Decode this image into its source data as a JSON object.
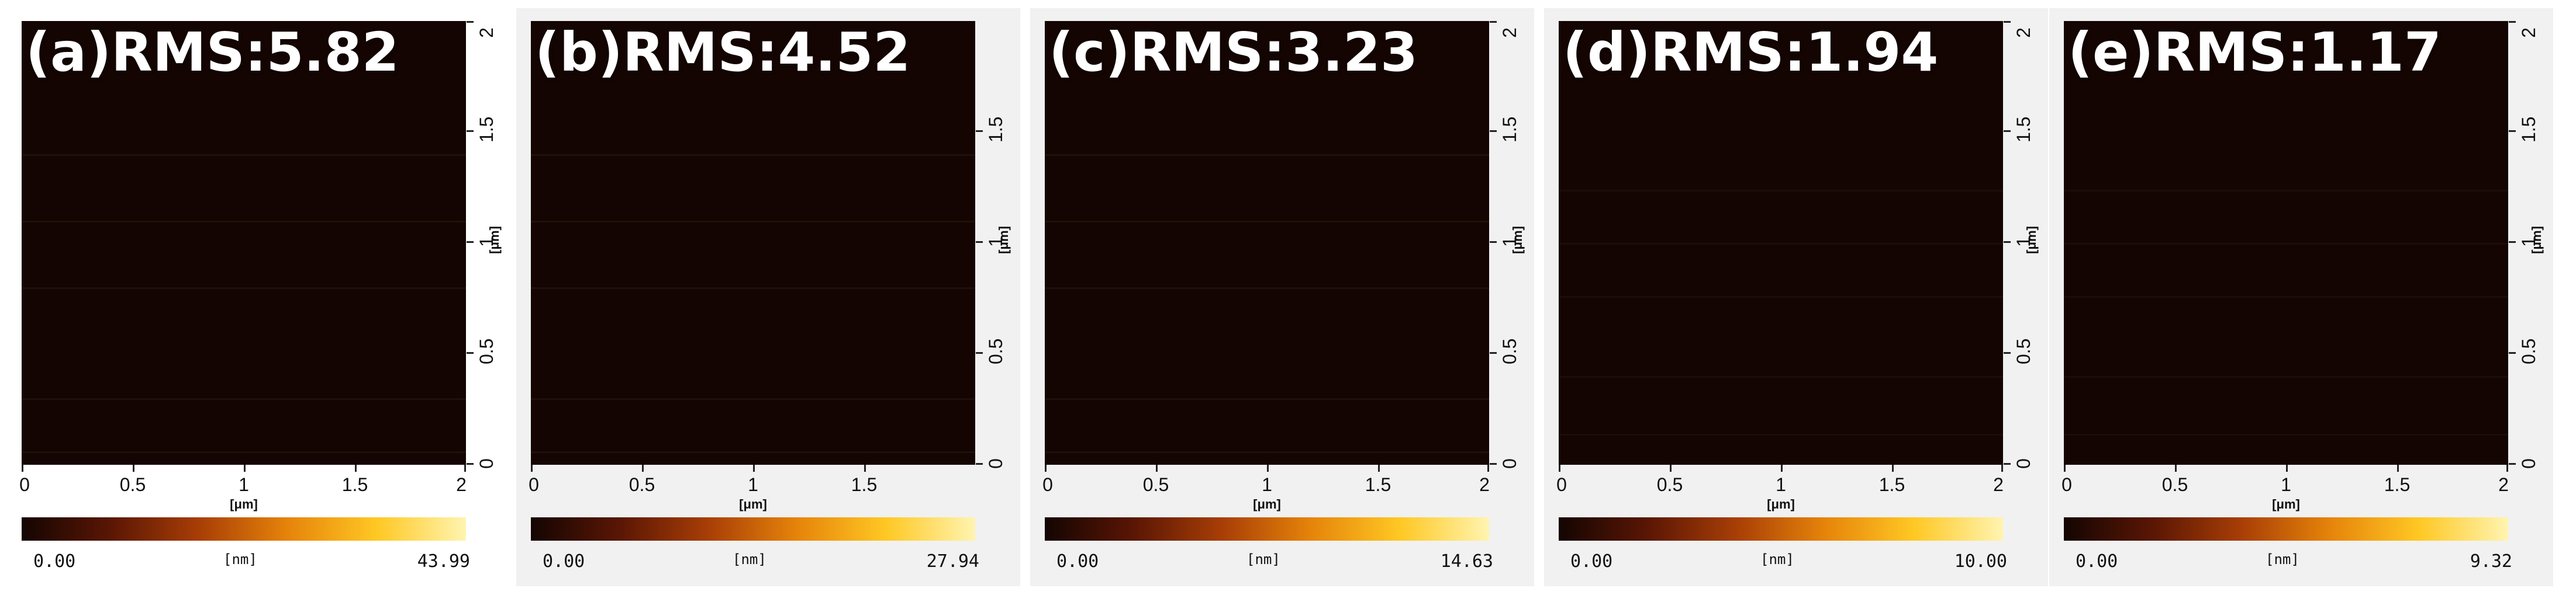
{
  "panels": [
    {
      "label": "(a)RMS:5.82",
      "x_ticks": [
        "0",
        "0.5",
        "1",
        "1.5",
        "2"
      ],
      "x_unit": "[μm]",
      "y_ticks": [
        "0",
        "0.5",
        "1",
        "1.5",
        "2"
      ],
      "y_unit": "[μm]",
      "colorbar": {
        "min": "0.00",
        "unit": "[nm]",
        "max": "43.99"
      }
    },
    {
      "label": "(b)RMS:4.52",
      "x_ticks": [
        "0",
        "0.5",
        "1",
        "1.5"
      ],
      "x_unit": "[μm]",
      "y_ticks": [
        "0",
        "0.5",
        "1",
        "1.5"
      ],
      "y_unit": "[μm]",
      "colorbar": {
        "min": "0.00",
        "unit": "[nm]",
        "max": "27.94"
      }
    },
    {
      "label": "(c)RMS:3.23",
      "x_ticks": [
        "0",
        "0.5",
        "1",
        "1.5",
        "2"
      ],
      "x_unit": "[μm]",
      "y_ticks": [
        "0",
        "0.5",
        "1",
        "1.5",
        "2"
      ],
      "y_unit": "[μm]",
      "colorbar": {
        "min": "0.00",
        "unit": "[nm]",
        "max": "14.63"
      }
    },
    {
      "label": "(d)RMS:1.94",
      "x_ticks": [
        "0",
        "0.5",
        "1",
        "1.5",
        "2"
      ],
      "x_unit": "[μm]",
      "y_ticks": [
        "0",
        "0.5",
        "1",
        "1.5",
        "2"
      ],
      "y_unit": "[μm]",
      "colorbar": {
        "min": "0.00",
        "unit": "[nm]",
        "max": "10.00"
      }
    },
    {
      "label": "(e)RMS:1.17",
      "x_ticks": [
        "0",
        "0.5",
        "1",
        "1.5",
        "2"
      ],
      "x_unit": "[μm]",
      "y_ticks": [
        "0",
        "0.5",
        "1",
        "1.5",
        "2"
      ],
      "y_unit": "[μm]",
      "colorbar": {
        "min": "0.00",
        "unit": "[nm]",
        "max": "9.32"
      }
    }
  ],
  "colormap": [
    "#140502",
    "#5a1604",
    "#a83e06",
    "#e6840a",
    "#ffc824",
    "#fff4b0"
  ]
}
